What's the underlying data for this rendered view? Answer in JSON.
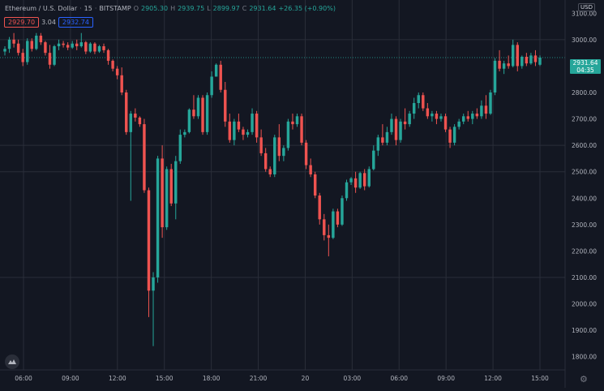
{
  "legend": {
    "symbol": "Ethereum / U.S. Dollar",
    "interval": "15",
    "exchange": "BITSTAMP",
    "o_label": "O",
    "o": "2905.30",
    "h_label": "H",
    "h": "2939.75",
    "l_label": "L",
    "l": "2899.97",
    "c_label": "C",
    "c": "2931.64",
    "change": "+26.35 (+0.90%)"
  },
  "pills": {
    "bid": "2929.70",
    "spread": "3.04",
    "ask": "2932.74"
  },
  "price_axis": {
    "currency": "USD",
    "last_price": "2931.64",
    "countdown": "04:35"
  },
  "chart_data": {
    "type": "candlestick",
    "title": "Ethereum / U.S. Dollar · 15 · BITSTAMP",
    "y_ticks": [
      1800,
      1900,
      2000,
      2100,
      2200,
      2300,
      2400,
      2500,
      2600,
      2700,
      2800,
      2900,
      3000,
      3100
    ],
    "y_tick_labels": [
      "1800.00",
      "1900.00",
      "2000.00",
      "2100.00",
      "2200.00",
      "2300.00",
      "2400.00",
      "2500.00",
      "2600.00",
      "2700.00",
      "2800.00",
      "2900.00",
      "3000.00",
      "3100.00"
    ],
    "ylim": [
      1750,
      3150
    ],
    "x_ticks": [
      "06:00",
      "09:00",
      "12:00",
      "15:00",
      "18:00",
      "21:00",
      "20",
      "03:00",
      "06:00",
      "09:00",
      "12:00",
      "15:00"
    ],
    "horizontal_lines": [
      3000,
      2600,
      2500,
      2100
    ],
    "colors": {
      "up": "#26a69a",
      "down": "#ef5350",
      "grid": "#2a2e39",
      "background": "#131722"
    },
    "candles": [
      [
        2955,
        2975,
        2940,
        2965
      ],
      [
        2965,
        3010,
        2950,
        3000
      ],
      [
        3000,
        3025,
        2970,
        2985
      ],
      [
        2985,
        3000,
        2940,
        2950
      ],
      [
        2950,
        2965,
        2900,
        2915
      ],
      [
        2915,
        3005,
        2905,
        2995
      ],
      [
        2995,
        3005,
        2955,
        2965
      ],
      [
        2965,
        3025,
        2960,
        3015
      ],
      [
        3015,
        3025,
        2980,
        2990
      ],
      [
        2990,
        2995,
        2940,
        2950
      ],
      [
        2950,
        2980,
        2890,
        2905
      ],
      [
        2905,
        2980,
        2900,
        2975
      ],
      [
        2975,
        3000,
        2960,
        2985
      ],
      [
        2985,
        2995,
        2970,
        2980
      ],
      [
        2980,
        2990,
        2960,
        2970
      ],
      [
        2970,
        2995,
        2965,
        2985
      ],
      [
        2985,
        3000,
        2960,
        2975
      ],
      [
        2975,
        3025,
        2970,
        2990
      ],
      [
        2990,
        2995,
        2945,
        2955
      ],
      [
        2955,
        2990,
        2950,
        2985
      ],
      [
        2985,
        2990,
        2945,
        2955
      ],
      [
        2955,
        2980,
        2950,
        2975
      ],
      [
        2975,
        2985,
        2950,
        2960
      ],
      [
        2960,
        2965,
        2905,
        2920
      ],
      [
        2920,
        2925,
        2880,
        2890
      ],
      [
        2890,
        2900,
        2850,
        2865
      ],
      [
        2865,
        2895,
        2790,
        2800
      ],
      [
        2800,
        2810,
        2640,
        2650
      ],
      [
        2650,
        2730,
        2390,
        2720
      ],
      [
        2720,
        2740,
        2690,
        2705
      ],
      [
        2705,
        2710,
        2670,
        2680
      ],
      [
        2680,
        2700,
        2420,
        2430
      ],
      [
        2430,
        2440,
        1950,
        2050
      ],
      [
        2050,
        2120,
        1840,
        2100
      ],
      [
        2100,
        2560,
        2080,
        2550
      ],
      [
        2550,
        2600,
        2250,
        2290
      ],
      [
        2290,
        2520,
        2280,
        2510
      ],
      [
        2510,
        2530,
        2370,
        2380
      ],
      [
        2380,
        2560,
        2320,
        2540
      ],
      [
        2540,
        2660,
        2530,
        2640
      ],
      [
        2640,
        2660,
        2630,
        2650
      ],
      [
        2650,
        2740,
        2645,
        2735
      ],
      [
        2735,
        2790,
        2700,
        2710
      ],
      [
        2710,
        2790,
        2700,
        2780
      ],
      [
        2780,
        2790,
        2640,
        2650
      ],
      [
        2650,
        2800,
        2640,
        2790
      ],
      [
        2790,
        2880,
        2780,
        2860
      ],
      [
        2860,
        2910,
        2860,
        2905
      ],
      [
        2905,
        2920,
        2800,
        2810
      ],
      [
        2810,
        2840,
        2670,
        2690
      ],
      [
        2690,
        2720,
        2610,
        2620
      ],
      [
        2620,
        2700,
        2600,
        2690
      ],
      [
        2690,
        2720,
        2650,
        2660
      ],
      [
        2660,
        2670,
        2620,
        2640
      ],
      [
        2640,
        2660,
        2630,
        2650
      ],
      [
        2650,
        2740,
        2640,
        2720
      ],
      [
        2720,
        2730,
        2610,
        2630
      ],
      [
        2630,
        2660,
        2560,
        2570
      ],
      [
        2570,
        2590,
        2500,
        2510
      ],
      [
        2510,
        2520,
        2480,
        2490
      ],
      [
        2490,
        2640,
        2480,
        2630
      ],
      [
        2630,
        2680,
        2540,
        2560
      ],
      [
        2560,
        2600,
        2540,
        2590
      ],
      [
        2590,
        2700,
        2580,
        2690
      ],
      [
        2690,
        2720,
        2660,
        2680
      ],
      [
        2680,
        2720,
        2670,
        2710
      ],
      [
        2710,
        2720,
        2600,
        2610
      ],
      [
        2610,
        2620,
        2510,
        2525
      ],
      [
        2525,
        2550,
        2480,
        2490
      ],
      [
        2490,
        2500,
        2400,
        2410
      ],
      [
        2410,
        2420,
        2300,
        2320
      ],
      [
        2320,
        2340,
        2240,
        2260
      ],
      [
        2260,
        2300,
        2180,
        2250
      ],
      [
        2250,
        2360,
        2245,
        2350
      ],
      [
        2350,
        2360,
        2290,
        2300
      ],
      [
        2300,
        2410,
        2295,
        2400
      ],
      [
        2400,
        2470,
        2390,
        2460
      ],
      [
        2460,
        2480,
        2450,
        2475
      ],
      [
        2475,
        2500,
        2420,
        2440
      ],
      [
        2440,
        2500,
        2435,
        2495
      ],
      [
        2495,
        2510,
        2430,
        2445
      ],
      [
        2445,
        2520,
        2440,
        2510
      ],
      [
        2510,
        2600,
        2505,
        2580
      ],
      [
        2580,
        2640,
        2560,
        2630
      ],
      [
        2630,
        2680,
        2600,
        2610
      ],
      [
        2610,
        2670,
        2600,
        2650
      ],
      [
        2650,
        2720,
        2640,
        2700
      ],
      [
        2700,
        2710,
        2600,
        2620
      ],
      [
        2620,
        2700,
        2610,
        2690
      ],
      [
        2690,
        2740,
        2660,
        2680
      ],
      [
        2680,
        2730,
        2670,
        2720
      ],
      [
        2720,
        2780,
        2700,
        2760
      ],
      [
        2760,
        2800,
        2740,
        2790
      ],
      [
        2790,
        2800,
        2730,
        2740
      ],
      [
        2740,
        2760,
        2700,
        2710
      ],
      [
        2710,
        2730,
        2690,
        2720
      ],
      [
        2720,
        2730,
        2680,
        2700
      ],
      [
        2700,
        2720,
        2690,
        2710
      ],
      [
        2710,
        2720,
        2650,
        2660
      ],
      [
        2660,
        2670,
        2590,
        2610
      ],
      [
        2610,
        2680,
        2600,
        2670
      ],
      [
        2670,
        2700,
        2660,
        2690
      ],
      [
        2690,
        2720,
        2680,
        2710
      ],
      [
        2710,
        2730,
        2690,
        2700
      ],
      [
        2700,
        2730,
        2680,
        2720
      ],
      [
        2720,
        2740,
        2700,
        2710
      ],
      [
        2710,
        2770,
        2700,
        2750
      ],
      [
        2750,
        2790,
        2700,
        2720
      ],
      [
        2720,
        2810,
        2715,
        2800
      ],
      [
        2800,
        2930,
        2790,
        2920
      ],
      [
        2920,
        2960,
        2880,
        2890
      ],
      [
        2890,
        2920,
        2870,
        2910
      ],
      [
        2910,
        2940,
        2890,
        2900
      ],
      [
        2900,
        3000,
        2895,
        2980
      ],
      [
        2980,
        2990,
        2880,
        2900
      ],
      [
        2900,
        2940,
        2890,
        2935
      ],
      [
        2935,
        2950,
        2900,
        2910
      ],
      [
        2910,
        2950,
        2905,
        2940
      ],
      [
        2940,
        2960,
        2900,
        2915
      ],
      [
        2905,
        2940,
        2900,
        2932
      ]
    ]
  }
}
